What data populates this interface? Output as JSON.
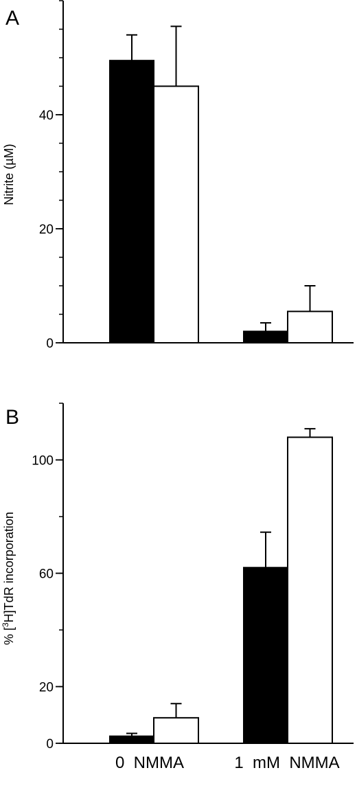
{
  "chart_data": [
    {
      "type": "bar",
      "panel_label": "A",
      "ylabel": "Nitrite (µM)",
      "ylabel_parts": {
        "pre": "Nitrite (",
        "mu": "µ",
        "post": "M)"
      },
      "ylim": [
        0,
        60
      ],
      "yticks": [
        0,
        20,
        40
      ],
      "minor_step": 5,
      "categories": [
        "0 NMMA",
        "1 mM NMMA"
      ],
      "series": [
        {
          "fill": "#000000",
          "values": [
            49.5,
            2.0
          ],
          "errors": [
            4.5,
            1.5
          ]
        },
        {
          "fill": "#ffffff",
          "values": [
            45.0,
            5.5
          ],
          "errors": [
            10.5,
            4.5
          ]
        }
      ],
      "grid": false,
      "legend": "none"
    },
    {
      "type": "bar",
      "panel_label": "B",
      "ylabel": "% [3H]TdR incorporation",
      "ylabel_parts": {
        "pre": "% [",
        "sup": "3",
        "post": "H]TdR incorporation"
      },
      "ylim": [
        0,
        120
      ],
      "yticks": [
        0,
        20,
        60,
        100
      ],
      "minor_step": 20,
      "categories": [
        "0 NMMA",
        "1 mM NMMA"
      ],
      "series": [
        {
          "fill": "#000000",
          "values": [
            2.5,
            62.0
          ],
          "errors": [
            1.0,
            12.5
          ]
        },
        {
          "fill": "#ffffff",
          "values": [
            9.0,
            108.0
          ],
          "errors": [
            5.0,
            3.0
          ]
        }
      ],
      "grid": false,
      "legend": "none"
    }
  ],
  "x_category_labels": [
    "0  NMMA",
    "1  mM  NMMA"
  ]
}
